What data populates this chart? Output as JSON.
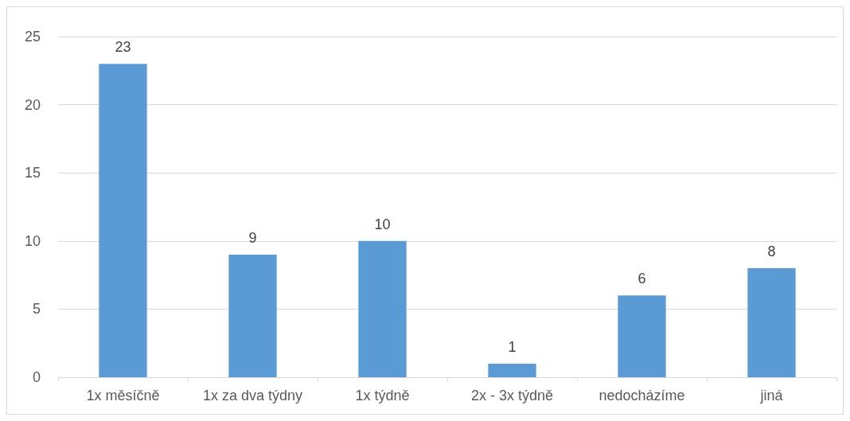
{
  "chart_data": {
    "type": "bar",
    "categories": [
      "1x měsíčně",
      "1x za dva týdny",
      "1x týdně",
      "2x - 3x týdně",
      "nedocházíme",
      "jiná"
    ],
    "values": [
      23,
      9,
      10,
      1,
      6,
      8
    ],
    "color": "#5b9bd5",
    "ylim": [
      0,
      25
    ],
    "yticks": [
      0,
      5,
      10,
      15,
      20,
      25
    ],
    "grid": "y",
    "data_labels": true
  }
}
